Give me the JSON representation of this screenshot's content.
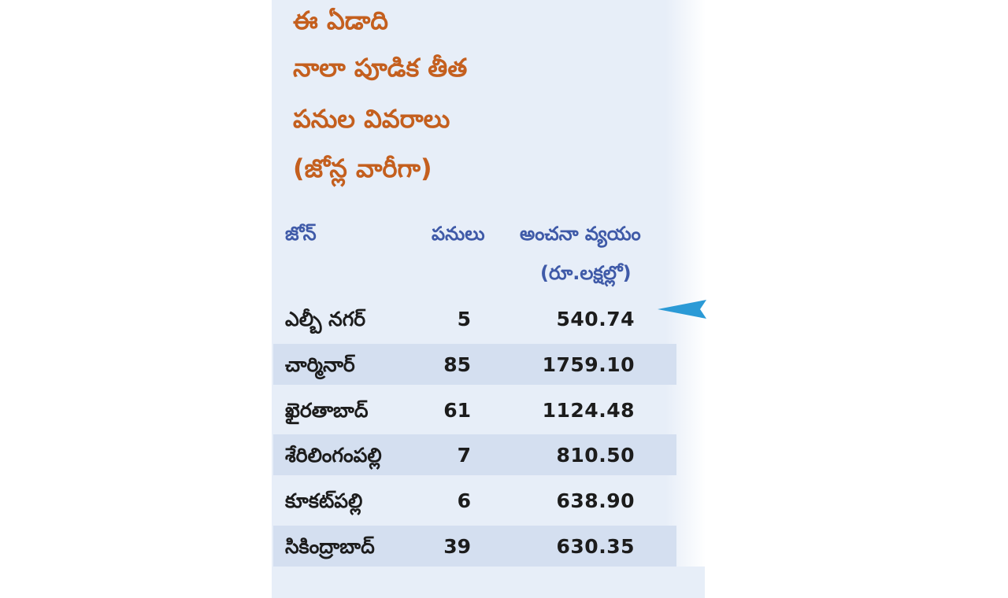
{
  "title_lines": [
    "ఈ ఏడాది",
    "నాలా పూడిక తీత",
    "పనుల వివరాలు",
    "(జోన్ల వారీగా)"
  ],
  "table": {
    "headers": {
      "zone": "జోన్",
      "works": "పనులు",
      "cost": "అంచనా వ్యయం",
      "cost_unit": "(రూ.లక్షల్లో)"
    },
    "rows": [
      {
        "zone": "ఎల్బీ నగర్",
        "works": "5",
        "cost": "540.74"
      },
      {
        "zone": "చార్మినార్",
        "works": "85",
        "cost": "1759.10"
      },
      {
        "zone": "ఖైరతాబాద్",
        "works": "61",
        "cost": "1124.48"
      },
      {
        "zone": "శేరిలింగంపల్లి",
        "works": "7",
        "cost": "810.50"
      },
      {
        "zone": "కూకట్‌పల్లి",
        "works": "6",
        "cost": "638.90"
      },
      {
        "zone": "సికింద్రాబాద్",
        "works": "39",
        "cost": "630.35"
      }
    ]
  },
  "colors": {
    "panel": "#e7eef8",
    "band": "#d4dff0",
    "title": "#c45f1e",
    "header": "#3f5aa8",
    "arrow": "#2b9ad6"
  }
}
